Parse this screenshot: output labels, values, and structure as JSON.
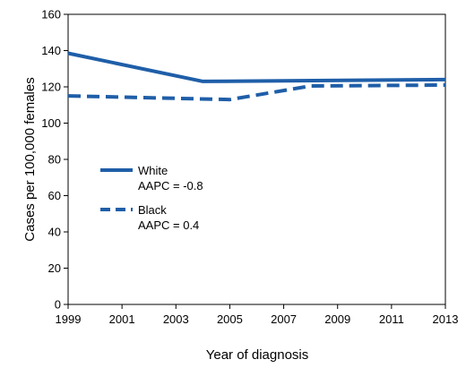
{
  "chart_data": {
    "type": "line",
    "xlabel": "Year of diagnosis",
    "ylabel": "Cases per 100,000 females",
    "xlim": [
      1999,
      2013
    ],
    "ylim": [
      0,
      160
    ],
    "x_ticks": [
      "1999",
      "2001",
      "2003",
      "2005",
      "2007",
      "2009",
      "2011",
      "2013"
    ],
    "y_ticks": [
      "0",
      "20",
      "40",
      "60",
      "80",
      "100",
      "120",
      "140",
      "160"
    ],
    "series": [
      {
        "name": "White",
        "note": "AAPC = -0.8",
        "style": "solid",
        "color": "#1f5ea8",
        "points": [
          {
            "x": 1999,
            "y": 138.5
          },
          {
            "x": 2004,
            "y": 123
          },
          {
            "x": 2013,
            "y": 124
          }
        ]
      },
      {
        "name": "Black",
        "note": "AAPC = 0.4",
        "style": "dashed",
        "color": "#1f5ea8",
        "points": [
          {
            "x": 1999,
            "y": 115
          },
          {
            "x": 2005,
            "y": 113
          },
          {
            "x": 2008,
            "y": 120.5
          },
          {
            "x": 2013,
            "y": 121
          }
        ]
      }
    ],
    "grid": false,
    "legend_placement": "middle-left"
  }
}
